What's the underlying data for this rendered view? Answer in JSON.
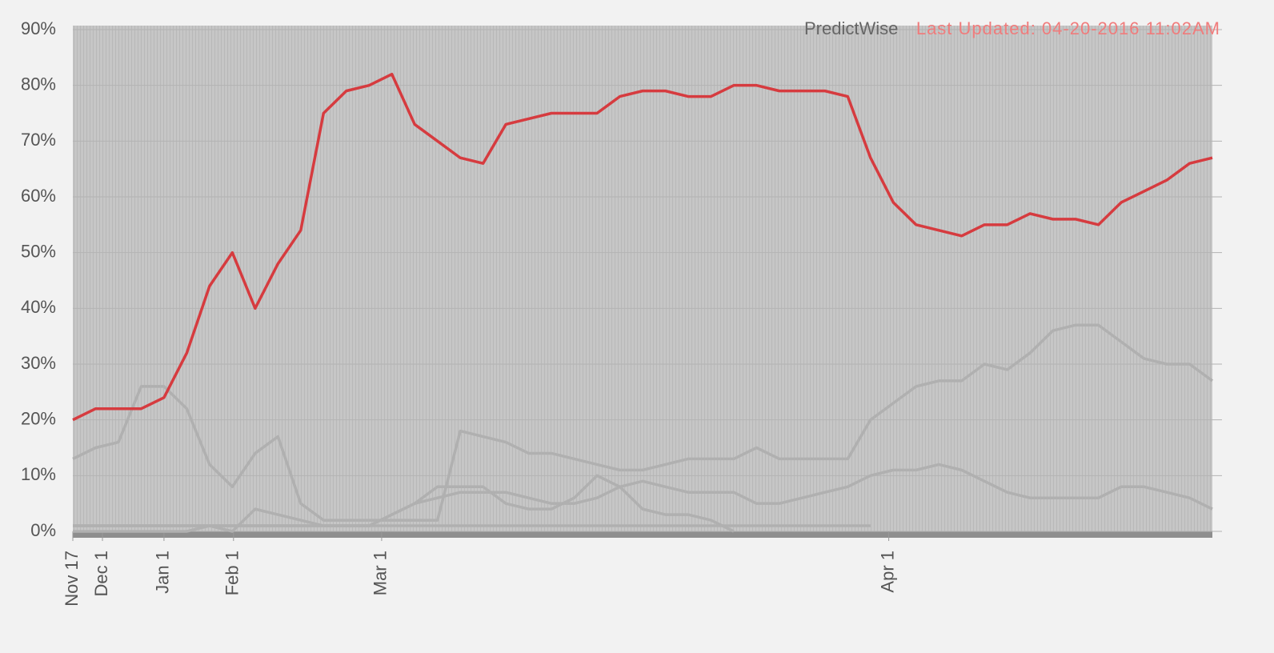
{
  "chart_data": {
    "type": "line",
    "annotations": [
      "PredictWise",
      "Last Updated: 04-20-2016 11:02AM"
    ],
    "x": [
      0,
      2,
      4,
      6,
      8,
      10,
      12,
      14,
      16,
      18,
      20,
      22,
      24,
      26,
      28,
      30,
      32,
      34,
      36,
      38,
      40,
      42,
      44,
      46,
      48,
      50,
      52,
      54,
      56,
      58,
      60,
      62,
      64,
      66,
      68,
      70,
      72,
      74,
      76,
      78,
      80,
      82,
      84,
      86,
      88,
      90,
      92,
      94,
      96,
      98,
      100
    ],
    "xlim": [
      0,
      100
    ],
    "xticks": [
      {
        "value": 0,
        "label": "Nov 17"
      },
      {
        "value": 2.6,
        "label": "Dec 1"
      },
      {
        "value": 8,
        "label": "Jan 1"
      },
      {
        "value": 14.1,
        "label": "Feb 1"
      },
      {
        "value": 27.1,
        "label": "Mar 1"
      },
      {
        "value": 71.6,
        "label": "Apr 1"
      }
    ],
    "ylim": [
      0,
      90
    ],
    "yticks": [
      {
        "value": 0,
        "label": "0%"
      },
      {
        "value": 10,
        "label": "10%"
      },
      {
        "value": 20,
        "label": "20%"
      },
      {
        "value": 30,
        "label": "30%"
      },
      {
        "value": 40,
        "label": "40%"
      },
      {
        "value": 50,
        "label": "50%"
      },
      {
        "value": 60,
        "label": "60%"
      },
      {
        "value": 70,
        "label": "70%"
      },
      {
        "value": 80,
        "label": "80%"
      },
      {
        "value": 90,
        "label": "90%"
      }
    ],
    "grid": true,
    "series": [
      {
        "color": "#b0b0b0",
        "values": [
          13,
          15,
          16,
          26,
          26,
          22,
          12,
          8,
          14,
          17,
          5,
          2,
          2,
          2,
          2,
          2,
          2,
          18,
          17,
          16,
          14,
          14,
          13,
          12,
          11,
          11,
          12,
          13,
          13,
          13,
          15,
          13,
          13,
          13,
          13,
          20,
          23,
          26,
          27,
          27,
          30,
          29,
          32,
          36,
          37,
          37,
          34,
          31,
          30,
          30,
          27
        ]
      },
      {
        "color": "#b0b0b0",
        "values": [
          1,
          1,
          1,
          1,
          1,
          1,
          1,
          1,
          1,
          1,
          1,
          1,
          1,
          1,
          3,
          5,
          6,
          7,
          7,
          7,
          6,
          5,
          5,
          6,
          8,
          9,
          8,
          7,
          7,
          7,
          5,
          5,
          6,
          7,
          8,
          10,
          11,
          11,
          12,
          11,
          9,
          7,
          6,
          6,
          6,
          6,
          8,
          8,
          7,
          6,
          4
        ]
      },
      {
        "color": "#b0b0b0",
        "values": [
          0,
          0,
          0,
          0,
          0,
          0,
          1,
          0,
          4,
          3,
          2,
          1,
          1,
          1,
          3,
          5,
          8,
          8,
          8,
          5,
          4,
          4,
          6,
          10,
          8,
          4,
          3,
          3,
          2,
          0,
          null,
          null,
          null,
          null,
          null,
          null,
          null,
          null,
          null,
          null,
          null,
          null,
          null,
          null,
          null,
          null,
          null,
          null,
          null,
          null,
          null
        ]
      },
      {
        "color": "#b0b0b0",
        "values": [
          1,
          1,
          1,
          1,
          1,
          1,
          1,
          1,
          1,
          1,
          1,
          1,
          1,
          1,
          1,
          1,
          1,
          1,
          1,
          1,
          1,
          1,
          1,
          1,
          1,
          1,
          1,
          1,
          1,
          1,
          1,
          1,
          1,
          1,
          1,
          1,
          null,
          null,
          null,
          null,
          null,
          null,
          null,
          null,
          null,
          null,
          null,
          null,
          null,
          null,
          null
        ]
      },
      {
        "color": "#d63b3f",
        "values": [
          20,
          22,
          22,
          22,
          24,
          32,
          44,
          50,
          40,
          48,
          54,
          75,
          79,
          80,
          82,
          73,
          70,
          67,
          66,
          73,
          74,
          75,
          75,
          75,
          78,
          79,
          79,
          78,
          78,
          80,
          80,
          79,
          79,
          79,
          78,
          67,
          59,
          55,
          54,
          53,
          55,
          55,
          57,
          56,
          56,
          55,
          59,
          61,
          63,
          66,
          67
        ]
      }
    ]
  }
}
